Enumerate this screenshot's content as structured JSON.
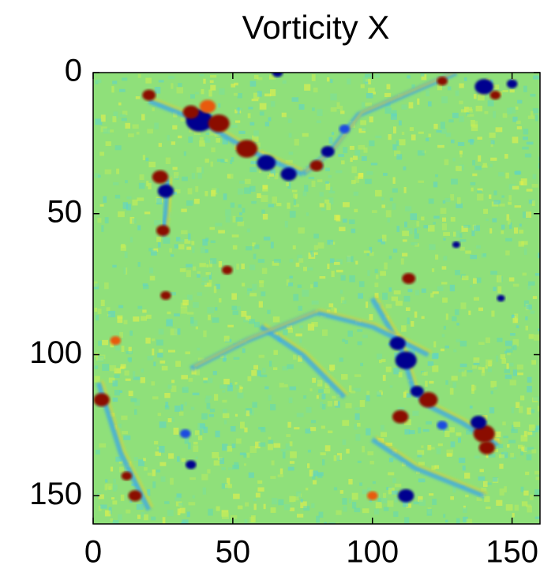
{
  "chart_data": {
    "type": "heatmap",
    "title": "Vorticity X",
    "xlim": [
      0,
      160
    ],
    "ylim": [
      0,
      160
    ],
    "yreverse": true,
    "xticks": [
      0,
      50,
      100,
      150
    ],
    "yticks": [
      0,
      50,
      100,
      150
    ]
  }
}
